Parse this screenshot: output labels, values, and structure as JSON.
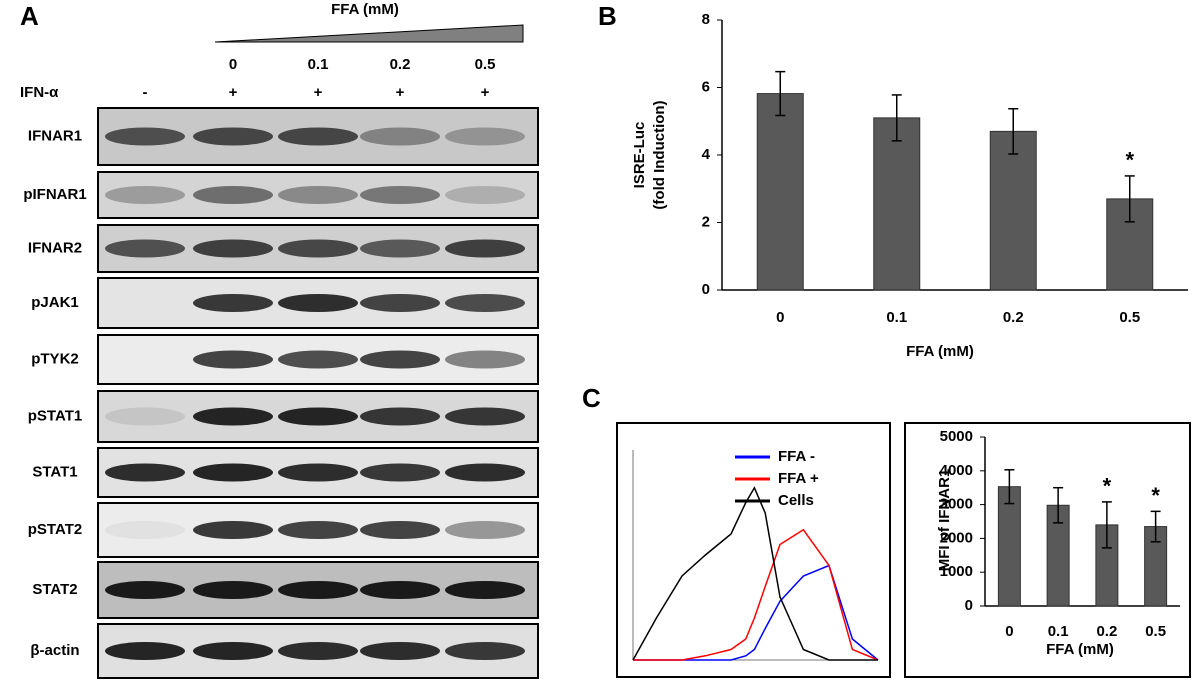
{
  "panel_a": {
    "label": "A",
    "treatment_label": "FFA (mM)",
    "doses": [
      "0",
      "0.1",
      "0.2",
      "0.5"
    ],
    "ifn_label": "IFN-α",
    "ifn_states": [
      "-",
      "+",
      "+",
      "+",
      "+"
    ],
    "rows": [
      "IFNAR1",
      "pIFNAR1",
      "IFNAR2",
      "pJAK1",
      "pTYK2",
      "pSTAT1",
      "STAT1",
      "pSTAT2",
      "STAT2",
      "β-actin"
    ]
  },
  "chart_data": [
    {
      "type": "bar",
      "panel_label": "B",
      "categories": [
        "0",
        "0.1",
        "0.2",
        "0.5"
      ],
      "values": [
        5.82,
        5.1,
        4.7,
        2.7
      ],
      "errors": [
        0.65,
        0.68,
        0.67,
        0.68
      ],
      "significance": [
        null,
        null,
        null,
        "*"
      ],
      "color": "#595959",
      "ylim": [
        0,
        8
      ],
      "yticks": [
        0,
        2,
        4,
        6,
        8
      ],
      "x_label": "FFA  (mM)",
      "y_label": [
        "ISRE-Luc",
        "(fold Induction)"
      ]
    },
    {
      "type": "line",
      "panel_label": "C",
      "log_x": true,
      "x": [
        1,
        3,
        10,
        30,
        100,
        200,
        300,
        500,
        1000,
        3000,
        10000,
        30000,
        100000
      ],
      "xlim": [
        1,
        100000
      ],
      "ylim": [
        0,
        100
      ],
      "series": [
        {
          "name": "FFA  -",
          "color": "#0000ff",
          "values": [
            0,
            0,
            0,
            0,
            0,
            2,
            5,
            15,
            28,
            40,
            45,
            10,
            0
          ]
        },
        {
          "name": "FFA  +",
          "color": "#ff0000",
          "values": [
            0,
            0,
            0,
            2,
            5,
            10,
            20,
            35,
            55,
            62,
            45,
            5,
            0
          ]
        },
        {
          "name": "Cells",
          "color": "#000000",
          "values": [
            0,
            20,
            40,
            50,
            60,
            75,
            82,
            70,
            30,
            5,
            0,
            0,
            0
          ]
        }
      ]
    },
    {
      "type": "bar",
      "categories": [
        "0",
        "0.1",
        "0.2",
        "0.5"
      ],
      "values": [
        3530,
        2980,
        2400,
        2350
      ],
      "errors": [
        500,
        520,
        680,
        450
      ],
      "significance": [
        null,
        null,
        "*",
        "*"
      ],
      "color": "#595959",
      "ylim": [
        0,
        5000
      ],
      "yticks": [
        0,
        1000,
        2000,
        3000,
        4000,
        5000
      ],
      "x_label": "FFA (mM)",
      "y_label": [
        "MFI of IFNAR1"
      ]
    }
  ]
}
